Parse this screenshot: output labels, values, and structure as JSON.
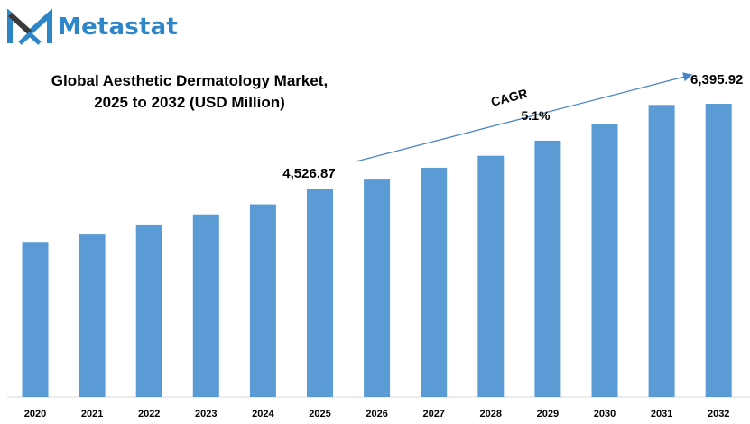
{
  "brand": {
    "name": "Metastat",
    "color": "#2e86c9",
    "icon": "metastat-m-logo-icon"
  },
  "chart_data": {
    "type": "bar",
    "title_line1": "Global Aesthetic Dermatology Market,",
    "title_line2": "2025 to 2032 (USD Million)",
    "categories": [
      "2020",
      "2021",
      "2022",
      "2023",
      "2024",
      "2025",
      "2026",
      "2027",
      "2028",
      "2029",
      "2030",
      "2031",
      "2032"
    ],
    "values": [
      3380,
      3560,
      3760,
      3980,
      4200,
      4526.87,
      4760,
      5000,
      5260,
      5590,
      5960,
      6370,
      6395.92
    ],
    "data_labels": [
      {
        "category": "2025",
        "text": "4,526.87"
      },
      {
        "category": "2032",
        "text": "6,395.92"
      }
    ],
    "annotation": {
      "label": "CAGR",
      "value": "5.1%",
      "from": "2025",
      "to": "2032"
    },
    "bar_color": "#5b9bd5",
    "grid": false,
    "legend": "none"
  }
}
